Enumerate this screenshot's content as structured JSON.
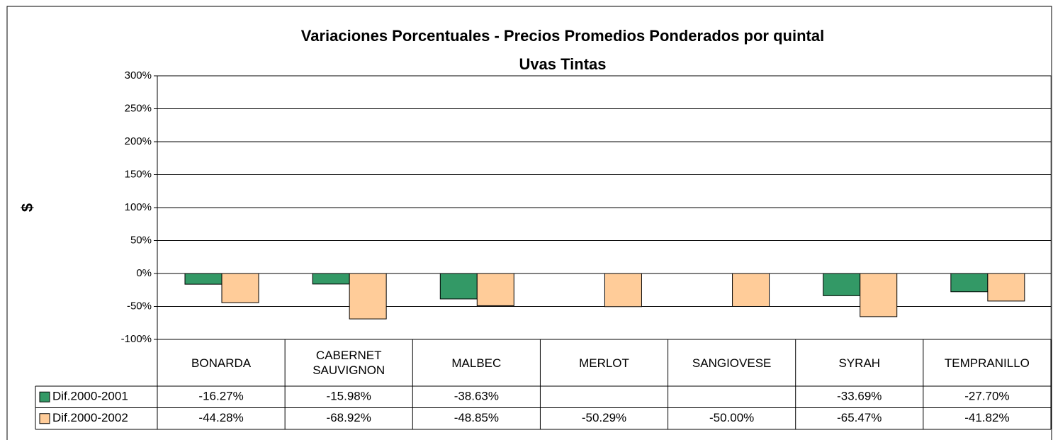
{
  "chart_data": {
    "type": "bar",
    "title": "Variaciones Porcentuales - Precios Promedios Ponderados por quintal",
    "subtitle": "Uvas Tintas",
    "ylabel": "$",
    "categories": [
      "BONARDA",
      "CABERNET SAUVIGNON",
      "MALBEC",
      "MERLOT",
      "SANGIOVESE",
      "SYRAH",
      "TEMPRANILLO"
    ],
    "series": [
      {
        "name": "Dif.2000-2001",
        "color": "#339966",
        "values": [
          -16.27,
          -15.98,
          -38.63,
          null,
          null,
          -33.69,
          -27.7
        ],
        "value_labels": [
          "-16.27%",
          "-15.98%",
          "-38.63%",
          null,
          null,
          "-33.69%",
          "-27.70%"
        ]
      },
      {
        "name": "Dif.2000-2002",
        "color": "#ffcc99",
        "values": [
          -44.28,
          -68.92,
          -48.85,
          -50.29,
          -50.0,
          -65.47,
          -41.82
        ],
        "value_labels": [
          "-44.28%",
          "-68.92%",
          "-48.85%",
          "-50.29%",
          "-50.00%",
          "-65.47%",
          "-41.82%"
        ]
      }
    ],
    "ylim": [
      -100,
      300
    ],
    "yticks": [
      {
        "value": -100,
        "label": "-100%"
      },
      {
        "value": -50,
        "label": "-50%"
      },
      {
        "value": 0,
        "label": "0%"
      },
      {
        "value": 50,
        "label": "50%"
      },
      {
        "value": 100,
        "label": "100%"
      },
      {
        "value": 150,
        "label": "150%"
      },
      {
        "value": 200,
        "label": "200%"
      },
      {
        "value": 250,
        "label": "250%"
      },
      {
        "value": 300,
        "label": "300%"
      }
    ],
    "grid": true,
    "data_table": true
  }
}
